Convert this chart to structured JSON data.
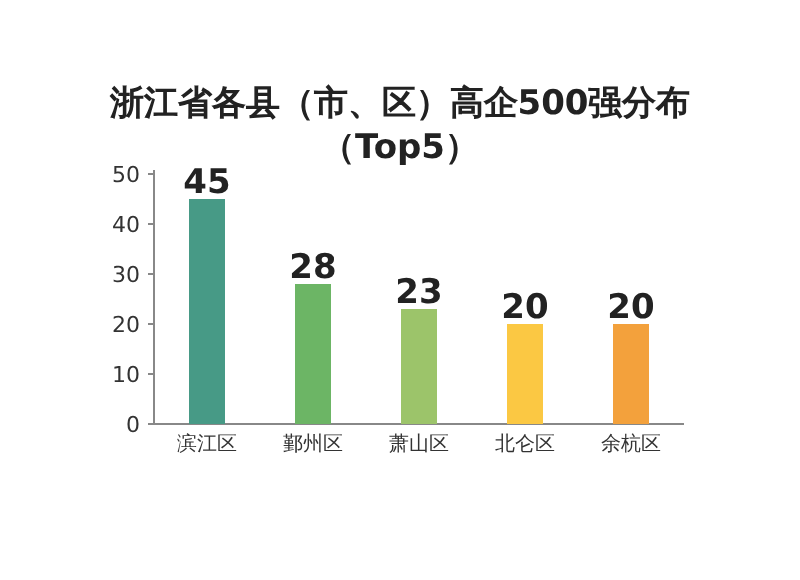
{
  "chart_data": {
    "type": "bar",
    "title": "浙江省各县（市、区）高企500强分布（Top5）",
    "categories": [
      "滨江区",
      "鄞州区",
      "萧山区",
      "北仑区",
      "余杭区"
    ],
    "values": [
      45,
      28,
      23,
      20,
      20
    ],
    "colors": [
      "#479a86",
      "#6cb565",
      "#9cc46a",
      "#fbc843",
      "#f3a13c"
    ],
    "ylim": [
      0,
      50
    ],
    "yticks": [
      0,
      10,
      20,
      30,
      40,
      50
    ],
    "grid": false,
    "data_labels": true
  }
}
